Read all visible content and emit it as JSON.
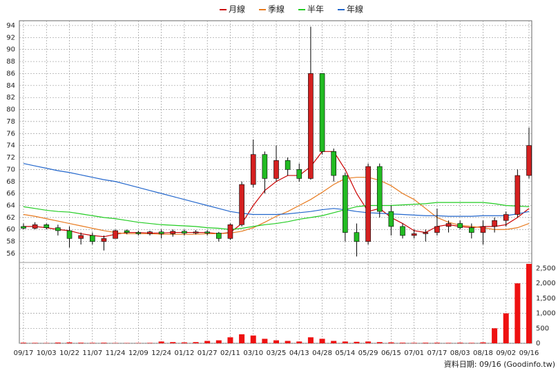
{
  "chart_data": {
    "type": "candlestick",
    "legend": "top",
    "grid": true,
    "note": "資料日期: 09/16 (Goodinfo.tw)",
    "categories": [
      "09/17",
      null,
      "10/03",
      null,
      "10/22",
      null,
      "11/07",
      null,
      "11/24",
      null,
      "12/09",
      null,
      "12/24",
      null,
      "01/12",
      null,
      "01/27",
      null,
      "02/11",
      null,
      "03/10",
      null,
      "03/25",
      null,
      "04/13",
      null,
      "04/28",
      null,
      "05/14",
      null,
      "05/29",
      null,
      "06/15",
      null,
      "07/01",
      null,
      "07/17",
      null,
      "08/03",
      null,
      "08/18",
      null,
      "09/02",
      null,
      "09/16"
    ],
    "open": [
      60.5,
      60.2,
      60.8,
      60.3,
      59.8,
      58.5,
      59,
      58,
      58.5,
      59.8,
      59.5,
      59.3,
      59.6,
      59.3,
      59.7,
      59.4,
      59.6,
      59.4,
      58.5,
      60.8,
      67.5,
      72.5,
      68.5,
      71.5,
      70,
      68.5,
      86,
      73,
      69,
      59.5,
      58,
      70.5,
      63,
      60.5,
      59,
      59.3,
      59.5,
      60.5,
      61,
      60.3,
      59.5,
      60.5,
      61.5,
      62.5,
      69
    ],
    "high": [
      61,
      61.2,
      61,
      60.8,
      60.5,
      59.5,
      59.5,
      59,
      60,
      60,
      59.8,
      59.8,
      60,
      60,
      60,
      59.9,
      59.9,
      59.6,
      61,
      68,
      75,
      73,
      74,
      72,
      71,
      93.8,
      86,
      73.5,
      69.5,
      61,
      71,
      71,
      64,
      61,
      60,
      60,
      63.5,
      61.5,
      61.5,
      61,
      61.5,
      62,
      63,
      70,
      77
    ],
    "low": [
      60,
      60,
      60,
      59,
      57,
      57.5,
      57.5,
      56.5,
      58.5,
      59.2,
      59,
      59,
      58.5,
      58.8,
      59,
      59.2,
      59,
      58,
      58.3,
      60.5,
      67,
      66,
      68,
      69,
      68,
      68.3,
      72.5,
      68,
      58,
      55.5,
      57.5,
      62,
      59,
      58.5,
      58.5,
      58,
      59,
      59.5,
      60,
      58.5,
      57.5,
      59.5,
      60.5,
      62,
      68.5
    ],
    "close": [
      60.2,
      60.8,
      60.3,
      59.8,
      58.5,
      59,
      58,
      58.5,
      59.8,
      59.5,
      59.3,
      59.6,
      59.3,
      59.7,
      59.4,
      59.6,
      59.4,
      58.5,
      60.8,
      67.5,
      72.5,
      68.5,
      71.5,
      70,
      68.5,
      86,
      73,
      69,
      59.5,
      58,
      70.5,
      63,
      60.5,
      59,
      59.3,
      59.5,
      60.5,
      61,
      60.3,
      59.5,
      60.5,
      61.5,
      62.5,
      69,
      74
    ],
    "up_color": "#d42020",
    "down_color": "#22bb22",
    "volume": [
      20,
      15,
      10,
      25,
      30,
      20,
      15,
      20,
      10,
      10,
      10,
      15,
      60,
      40,
      30,
      40,
      80,
      100,
      200,
      300,
      260,
      150,
      100,
      80,
      60,
      200,
      150,
      80,
      60,
      50,
      60,
      40,
      30,
      20,
      15,
      20,
      20,
      15,
      20,
      15,
      30,
      500,
      1000,
      2000,
      2650
    ],
    "volume_color": "#ee1111",
    "series": [
      {
        "name": "月線",
        "color": "#cc0000",
        "values": [
          60.5,
          60.5,
          60.3,
          60,
          59.8,
          59.3,
          59,
          58.8,
          59.2,
          59.5,
          59.5,
          59.4,
          59.4,
          59.5,
          59.5,
          59.5,
          59.5,
          59.3,
          59.5,
          61,
          64,
          66.5,
          68,
          69,
          69,
          70.5,
          73,
          73,
          70,
          66,
          63,
          63.5,
          62,
          61,
          59.8,
          59.5,
          60.5,
          60.8,
          60.5,
          60.3,
          60.5,
          60.5,
          60.8,
          62,
          63.5
        ]
      },
      {
        "name": "季線",
        "color": "#e87a1e",
        "values": [
          62.5,
          62.2,
          61.8,
          61.4,
          61,
          60.6,
          60.2,
          59.8,
          59.5,
          59.3,
          59.3,
          59.3,
          59.2,
          59.2,
          59.2,
          59.2,
          59.3,
          59.3,
          59.4,
          59.7,
          60.3,
          61.2,
          62.2,
          63,
          64,
          65,
          66.2,
          67.5,
          68.5,
          68.7,
          68.7,
          68.2,
          67.3,
          66,
          65,
          63.5,
          62,
          61.2,
          60.7,
          60.5,
          60.3,
          60,
          60,
          60.3,
          61
        ]
      },
      {
        "name": "半年",
        "color": "#22cc22",
        "values": [
          63.8,
          63.5,
          63.2,
          63,
          62.9,
          62.6,
          62.3,
          62,
          61.8,
          61.5,
          61.2,
          61,
          60.8,
          60.7,
          60.6,
          60.5,
          60.3,
          60.2,
          60,
          60.2,
          60.5,
          60.8,
          61,
          61.3,
          61.7,
          62,
          62.3,
          62.8,
          63.3,
          63.8,
          64,
          64,
          64,
          64.1,
          64.2,
          64.3,
          64.5,
          64.5,
          64.5,
          64.5,
          64.5,
          64.3,
          64,
          63.9,
          63.8
        ]
      },
      {
        "name": "年線",
        "color": "#2266cc",
        "values": [
          71,
          70.6,
          70.2,
          69.8,
          69.5,
          69.1,
          68.7,
          68.3,
          68,
          67.5,
          67,
          66.5,
          66,
          65.5,
          65,
          64.5,
          64,
          63.5,
          63,
          62.7,
          62.5,
          62.5,
          62.5,
          62.6,
          62.8,
          63,
          63.3,
          63.5,
          63.3,
          63,
          62.8,
          62.7,
          62.6,
          62.5,
          62.4,
          62.3,
          62.3,
          62.2,
          62.2,
          62.2,
          62.3,
          62.3,
          62.3,
          62.6,
          63
        ]
      }
    ],
    "ylim": [
      54.5,
      94.8
    ],
    "yticks": [
      56,
      58,
      60,
      62,
      64,
      66,
      68,
      70,
      72,
      74,
      76,
      78,
      80,
      82,
      84,
      86,
      88,
      90,
      92,
      94
    ],
    "y2lim": [
      0,
      2650
    ],
    "y2ticks": [
      0,
      500,
      {
        "value": 1000,
        "label": "1,000"
      },
      {
        "value": 1500,
        "label": "1,500"
      },
      {
        "value": 2000,
        "label": "2,000"
      },
      {
        "value": 2500,
        "label": "2,500"
      }
    ]
  }
}
